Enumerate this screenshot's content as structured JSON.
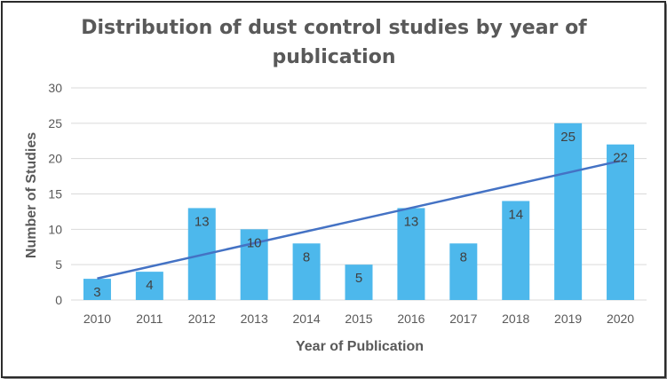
{
  "chart_data": {
    "type": "bar",
    "title_line1": "Distribution of dust control studies by year of",
    "title_line2": "publication",
    "xlabel": "Year of Publication",
    "ylabel": "Number of Studies",
    "categories": [
      "2010",
      "2011",
      "2012",
      "2013",
      "2014",
      "2015",
      "2016",
      "2017",
      "2018",
      "2019",
      "2020"
    ],
    "values": [
      3,
      4,
      13,
      10,
      8,
      5,
      13,
      8,
      14,
      25,
      22
    ],
    "ylim": [
      0,
      30
    ],
    "yticks": [
      0,
      5,
      10,
      15,
      20,
      25,
      30
    ],
    "grid": true,
    "legend": "none",
    "trendline": {
      "type": "linear"
    },
    "colors": {
      "bar": "#4db8ec",
      "trendline": "#4472c4",
      "grid": "#d9d9d9",
      "text": "#595959"
    }
  }
}
